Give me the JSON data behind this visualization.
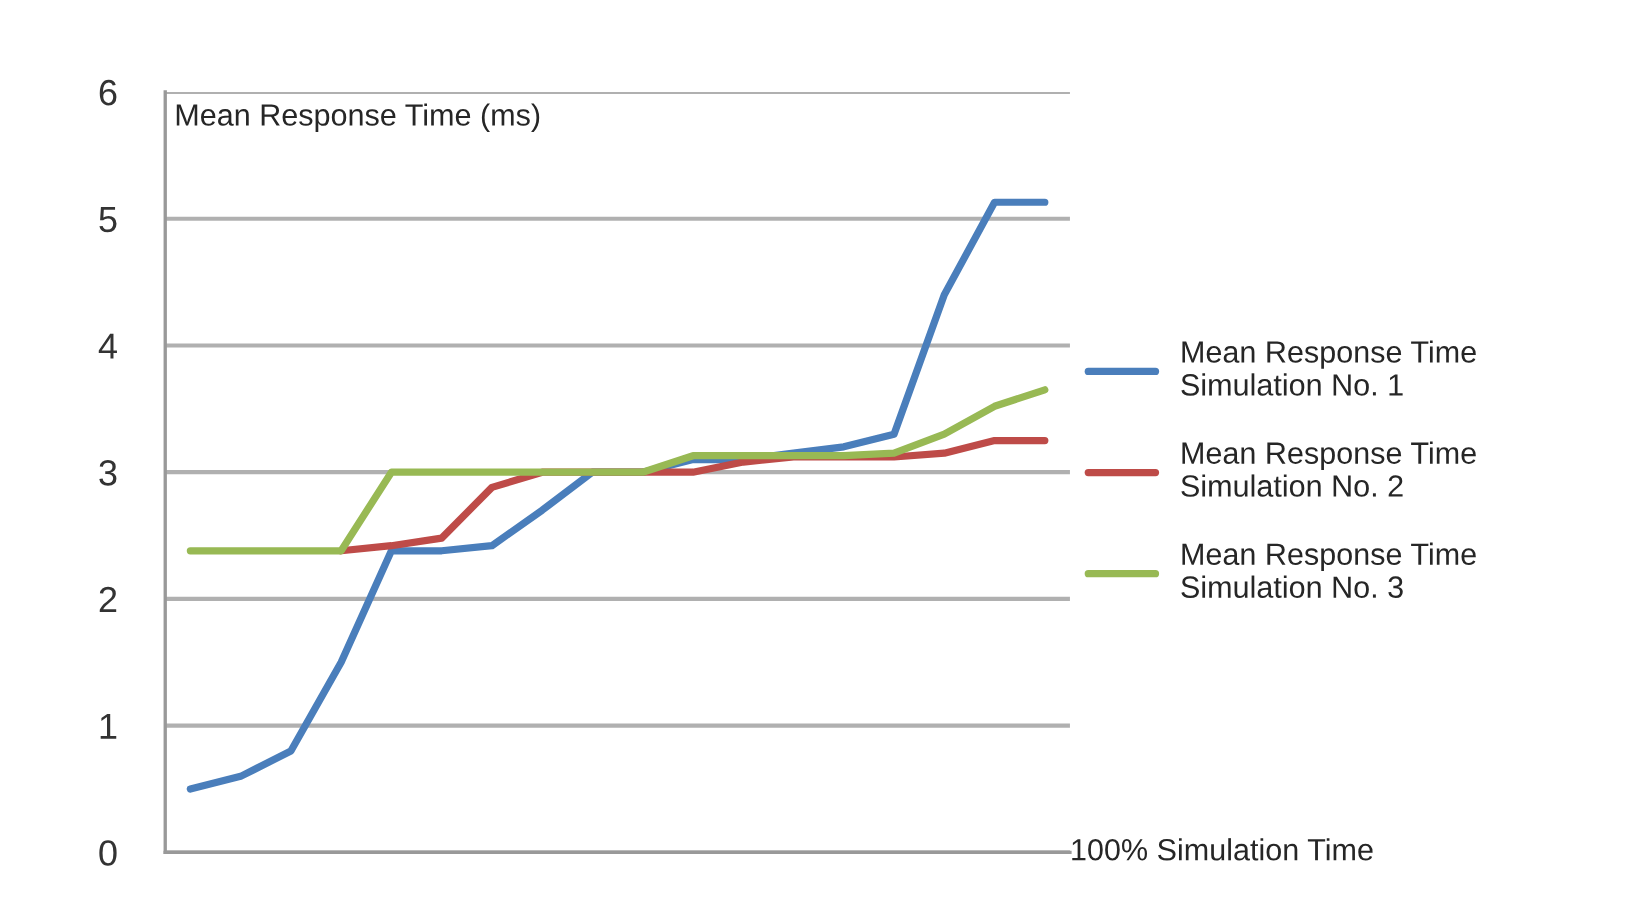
{
  "chart_data": {
    "type": "line",
    "ylabel": "Mean Response Time (ms)",
    "xlabel": "100% Simulation Time",
    "categories": [
      null,
      null,
      null,
      null,
      null,
      null,
      null,
      null,
      null,
      null,
      null,
      null,
      null,
      null,
      null,
      null,
      null,
      null
    ],
    "series": [
      {
        "name": "Mean Response Time\nSimulation No. 1",
        "color": "#4a7ebb",
        "values": [
          0.5,
          0.6,
          0.8,
          1.5,
          2.38,
          2.38,
          2.42,
          2.7,
          3.0,
          3.0,
          3.1,
          3.1,
          3.15,
          3.2,
          3.3,
          4.4,
          5.13,
          5.13
        ]
      },
      {
        "name": "Mean Response Time\nSimulation No. 2",
        "color": "#be4b48",
        "values": [
          null,
          null,
          null,
          2.38,
          2.42,
          2.48,
          2.88,
          3.0,
          3.0,
          3.0,
          3.0,
          3.08,
          3.12,
          3.12,
          3.12,
          3.15,
          3.25,
          3.25
        ]
      },
      {
        "name": "Mean Response Time\nSimulation No. 3",
        "color": "#98b954",
        "values": [
          2.38,
          2.38,
          2.38,
          2.38,
          3.0,
          3.0,
          3.0,
          3.0,
          3.0,
          3.0,
          3.13,
          3.13,
          3.13,
          3.13,
          3.15,
          3.3,
          3.52,
          3.65
        ]
      }
    ],
    "ylim": [
      0,
      6
    ],
    "yticks": [
      0,
      1,
      2,
      3,
      4,
      5,
      6
    ],
    "grid": "y",
    "legend": "right",
    "marker": "none",
    "line_style": "solid"
  }
}
